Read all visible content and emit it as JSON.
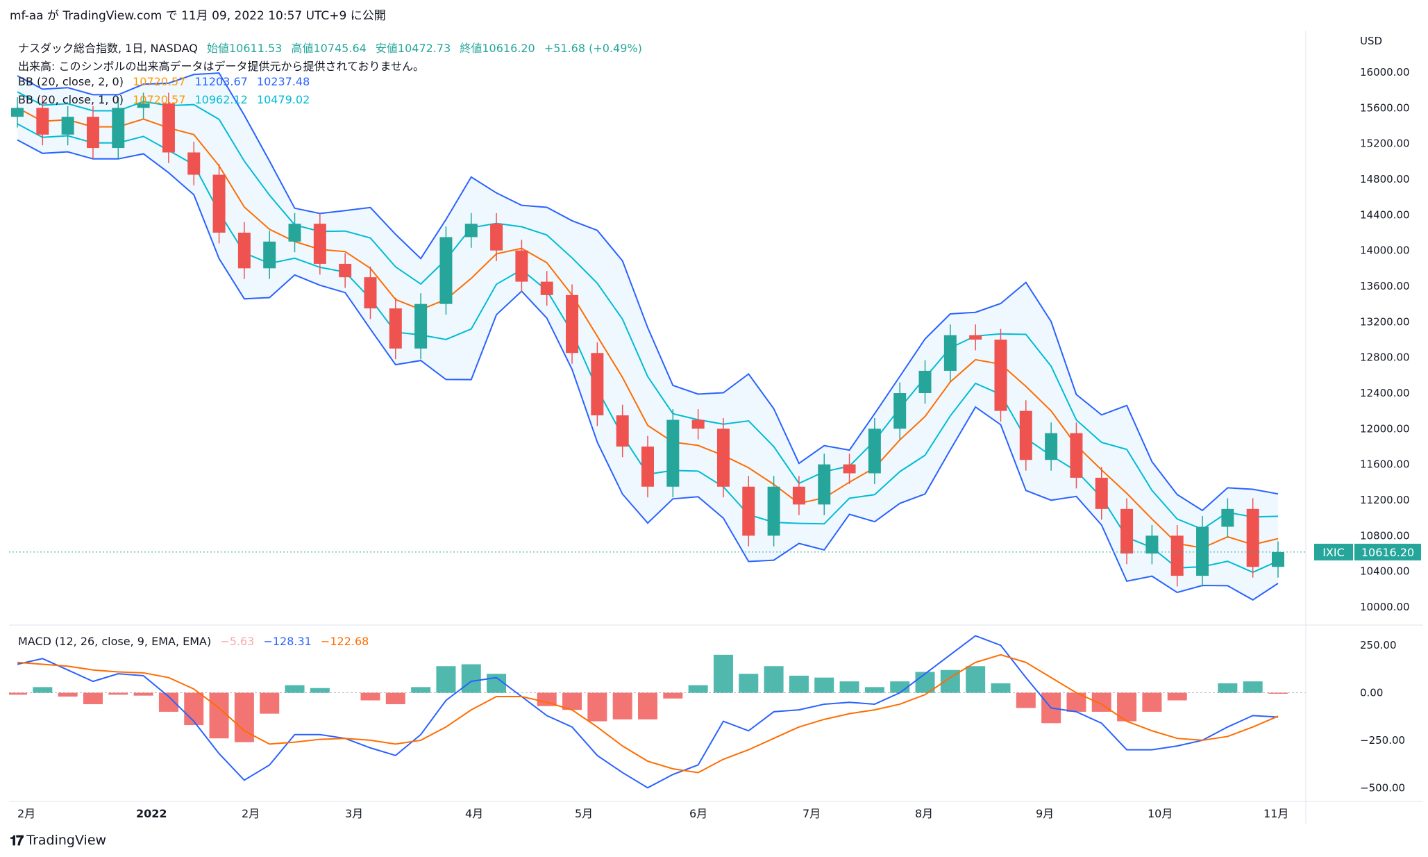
{
  "header": {
    "publish_line": "mf-aa が TradingView.com で 11月 09, 2022 10:57 UTC+9 に公開"
  },
  "legend": {
    "symbol": "ナスダック総合指数, 1日, NASDAQ",
    "open": "始値10611.53",
    "high": "高値10745.64",
    "low": "安値10472.73",
    "close": "終値10616.20",
    "change": "+51.68 (+0.49%)",
    "volume_note": "出来高: このシンボルの出来高データはデータ提供元から提供されておりません。",
    "bb1": {
      "label": "BB (20, close, 2, 0)",
      "basis": "10720.57",
      "upper": "11203.67",
      "lower": "10237.48"
    },
    "bb2": {
      "label": "BB (20, close, 1, 0)",
      "basis": "10720.57",
      "upper": "10962.12",
      "lower": "10479.02"
    },
    "macd": {
      "label": "MACD (12, 26, close, 9, EMA, EMA)",
      "hist": "−5.63",
      "macd": "−128.31",
      "signal": "−122.68"
    }
  },
  "price_axis": {
    "currency": "USD",
    "ticks": [
      "16000.00",
      "15600.00",
      "15200.00",
      "14800.00",
      "14400.00",
      "14000.00",
      "13600.00",
      "13200.00",
      "12800.00",
      "12400.00",
      "12000.00",
      "11600.00",
      "11200.00",
      "10800.00",
      "10400.00",
      "10000.00"
    ]
  },
  "macd_axis": {
    "ticks": [
      "250.00",
      "0.00",
      "−250.00",
      "−500.00"
    ]
  },
  "time_axis": {
    "labels": [
      "2月",
      "2022",
      "2月",
      "3月",
      "4月",
      "5月",
      "6月",
      "7月",
      "8月",
      "9月",
      "10月",
      "11月"
    ]
  },
  "last_price": {
    "symbol": "IXIC",
    "value": "10616.20"
  },
  "footer": {
    "brand": "TradingView"
  },
  "colors": {
    "up": "#26a69a",
    "down": "#ef5350",
    "bb2band": "#2962ff",
    "bb1band": "#00bcd4",
    "basis": "#ff6d00",
    "macd": "#2962ff",
    "signal": "#ff6d00"
  },
  "chart_data": {
    "type": "candlestick",
    "x": [
      "2021-11-22",
      "2021-11-29",
      "2021-12-06",
      "2021-12-13",
      "2021-12-20",
      "2021-12-27",
      "2022-01-03",
      "2022-01-10",
      "2022-01-17",
      "2022-01-24",
      "2022-01-31",
      "2022-02-07",
      "2022-02-14",
      "2022-02-21",
      "2022-02-28",
      "2022-03-07",
      "2022-03-14",
      "2022-03-21",
      "2022-03-28",
      "2022-04-04",
      "2022-04-11",
      "2022-04-18",
      "2022-04-25",
      "2022-05-02",
      "2022-05-09",
      "2022-05-16",
      "2022-05-23",
      "2022-05-30",
      "2022-06-06",
      "2022-06-13",
      "2022-06-20",
      "2022-06-27",
      "2022-07-04",
      "2022-07-11",
      "2022-07-18",
      "2022-07-25",
      "2022-08-01",
      "2022-08-08",
      "2022-08-15",
      "2022-08-22",
      "2022-08-29",
      "2022-09-05",
      "2022-09-12",
      "2022-09-19",
      "2022-09-26",
      "2022-10-03",
      "2022-10-10",
      "2022-10-17",
      "2022-10-24",
      "2022-10-31",
      "2022-11-07"
    ],
    "close": [
      15600,
      15300,
      15500,
      15150,
      15600,
      15650,
      15100,
      14850,
      14200,
      13800,
      14100,
      14300,
      13850,
      13700,
      13350,
      12900,
      13400,
      14150,
      14300,
      14000,
      13650,
      13500,
      12850,
      12150,
      11800,
      11350,
      12100,
      12000,
      11350,
      10800,
      11350,
      11150,
      11600,
      11500,
      12000,
      12400,
      12650,
      13050,
      13000,
      12200,
      11650,
      11950,
      11450,
      11100,
      10600,
      10800,
      10350,
      10900,
      11100,
      10450,
      10616
    ],
    "ylim": [
      10000,
      16000
    ],
    "macd": [
      150,
      180,
      120,
      60,
      100,
      90,
      -20,
      -150,
      -320,
      -460,
      -380,
      -220,
      -220,
      -240,
      -290,
      -330,
      -220,
      -40,
      60,
      80,
      -20,
      -120,
      -180,
      -330,
      -420,
      -500,
      -430,
      -380,
      -150,
      -200,
      -100,
      -90,
      -60,
      -50,
      -60,
      0,
      100,
      200,
      300,
      250,
      80,
      -80,
      -100,
      -160,
      -300,
      -300,
      -280,
      -250,
      -180,
      -120,
      -128
    ],
    "signal": [
      160,
      150,
      140,
      120,
      110,
      105,
      80,
      20,
      -80,
      -200,
      -270,
      -260,
      -245,
      -240,
      -250,
      -270,
      -250,
      -180,
      -90,
      -20,
      -20,
      -50,
      -90,
      -180,
      -280,
      -360,
      -400,
      -420,
      -350,
      -300,
      -240,
      -180,
      -140,
      -110,
      -90,
      -60,
      -10,
      80,
      160,
      200,
      160,
      80,
      0,
      -60,
      -150,
      -200,
      -240,
      -250,
      -230,
      -180,
      -123
    ],
    "macd_ylim": [
      -550,
      320
    ]
  }
}
